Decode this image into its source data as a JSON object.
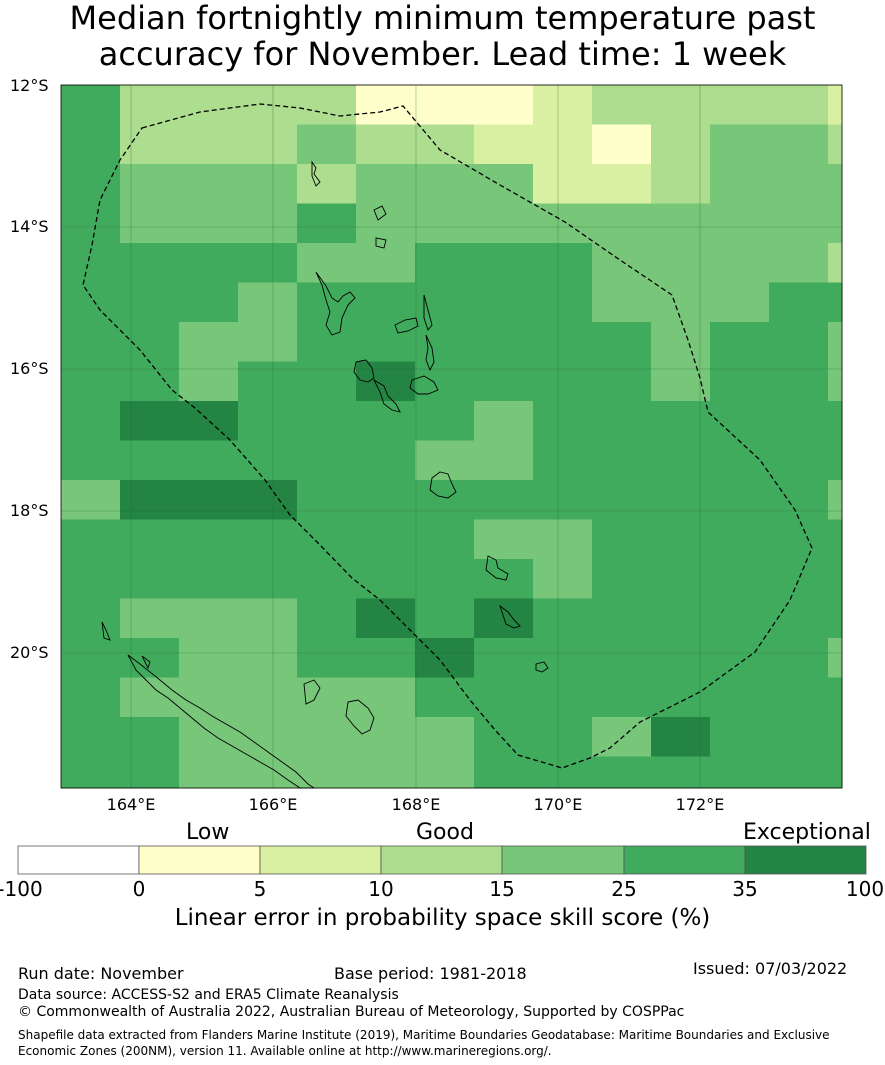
{
  "title": {
    "line1": "Median fortnightly minimum temperature past",
    "line2": "accuracy for November. Lead time: 1 week"
  },
  "map": {
    "lat_labels": [
      "12°S",
      "14°S",
      "16°S",
      "18°S",
      "20°S"
    ],
    "lon_labels": [
      "164°E",
      "166°E",
      "168°E",
      "170°E",
      "172°E"
    ],
    "lon_range": [
      163,
      174
    ],
    "lat_range": [
      -21.9,
      -12
    ]
  },
  "colorbar": {
    "categories": [
      "Low",
      "Good",
      "Exceptional"
    ],
    "ticks": [
      "-100",
      "0",
      "5",
      "10",
      "15",
      "25",
      "35",
      "100"
    ],
    "colors": [
      "#ffffff",
      "#ffffcc",
      "#d9f0a3",
      "#addd8e",
      "#78c679",
      "#41ab5d",
      "#238443"
    ],
    "label": "Linear error in probability space skill score (%)"
  },
  "footer": {
    "run_date": "Run date: November",
    "base_period": "Base period: 1981-2018",
    "issued": "Issued: 07/03/2022",
    "data_source": "Data source: ACCESS-S2 and ERA5 Climate Reanalysis",
    "copyright": "© Commonwealth of Australia 2022, Australian Bureau of Meteorology, Supported by COSPPac",
    "shapefile_line1": "Shapefile data extracted from Flanders Marine Institute (2019), Maritime Boundaries Geodatabase: Maritime Boundaries and Exclusive",
    "shapefile_line2": "Economic Zones (200NM), version 11. Available online at http://www.marineregions.org/."
  }
}
